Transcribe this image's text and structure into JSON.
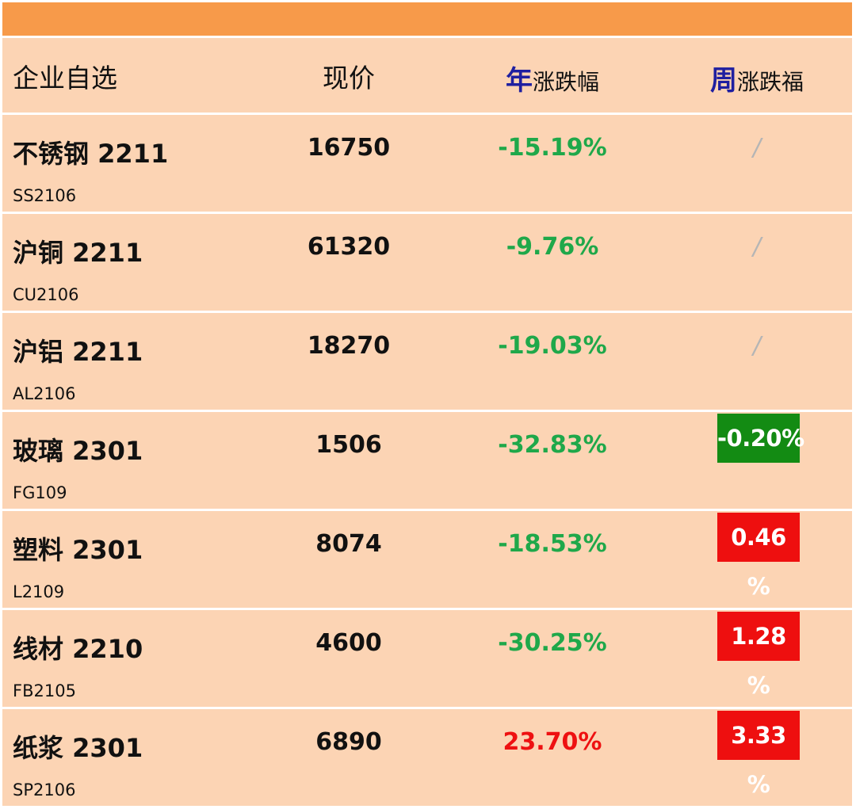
{
  "header": {
    "name_label": "企业自选",
    "price_label": "现价",
    "year_accent": "年",
    "year_rest": "涨跌幅",
    "week_accent": "周",
    "week_rest": "涨跌福"
  },
  "rows": [
    {
      "name": "不锈钢 2211",
      "code": "SS2106",
      "price": "16750",
      "year_change": "-15.19%",
      "year_dir": "down",
      "week_change": "/",
      "week_type": "none"
    },
    {
      "name": "沪铜 2211",
      "code": "CU2106",
      "price": "61320",
      "year_change": "-9.76%",
      "year_dir": "down",
      "week_change": "/",
      "week_type": "none"
    },
    {
      "name": "沪铝 2211",
      "code": "AL2106",
      "price": "18270",
      "year_change": "-19.03%",
      "year_dir": "down",
      "week_change": "/",
      "week_type": "none"
    },
    {
      "name": "玻璃 2301",
      "code": "FG109",
      "price": "1506",
      "year_change": "-32.83%",
      "year_dir": "down",
      "week_change": "-0.20%",
      "week_type": "down"
    },
    {
      "name": "塑料 2301",
      "code": "L2109",
      "price": "8074",
      "year_change": "-18.53%",
      "year_dir": "down",
      "week_change": "0.46 %",
      "week_type": "up"
    },
    {
      "name": "线材 2210",
      "code": "FB2105",
      "price": "4600",
      "year_change": "-30.25%",
      "year_dir": "down",
      "week_change": "1.28 %",
      "week_type": "up"
    },
    {
      "name": "纸浆 2301",
      "code": "SP2106",
      "price": "6890",
      "year_change": "23.70%",
      "year_dir": "up",
      "week_change": "3.33 %",
      "week_type": "up"
    }
  ],
  "colors": {
    "top_bar": "#f79a4a",
    "row_bg": "#fcd4b4",
    "up": "#ee1111",
    "down": "#1fa84a",
    "box_down": "#138b13",
    "box_up": "#ee0f0f",
    "header_accent": "#1f1fa0"
  }
}
